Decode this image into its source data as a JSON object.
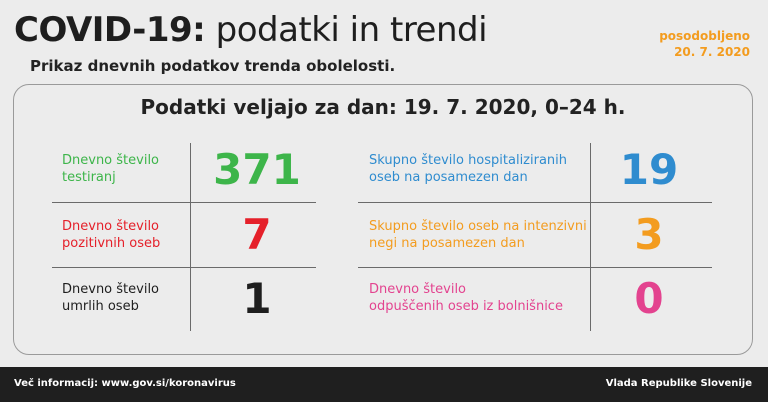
{
  "header": {
    "title_bold": "COVID-19:",
    "title_light": "podatki in trendi",
    "subtitle": "Prikaz dnevnih podatkov trenda obolelosti.",
    "updated_label": "posodobljeno",
    "updated_date": "20. 7. 2020"
  },
  "panel": {
    "title": "Podatki veljajo za dan: 19. 7. 2020, 0–24 h."
  },
  "stats_left": [
    {
      "line1": "Dnevno število",
      "line2": "testiranj",
      "value": "371",
      "color": "#3db54a"
    },
    {
      "line1": "Dnevno število",
      "line2": "pozitivnih oseb",
      "value": "7",
      "color": "#e5202a"
    },
    {
      "line1": "Dnevno število",
      "line2": "umrlih oseb",
      "value": "1",
      "color": "#1e1e1e"
    }
  ],
  "stats_right": [
    {
      "line1": "Skupno število hospitaliziranih",
      "line2": "oseb na posamezen dan",
      "value": "19",
      "color": "#2f8ccf"
    },
    {
      "line1": "Skupno število oseb na intenzivni",
      "line2": "negi na posamezen dan",
      "value": "3",
      "color": "#f39c1f"
    },
    {
      "line1": "Dnevno število",
      "line2": "odpuščenih oseb iz bolnišnice",
      "value": "0",
      "color": "#e3438f"
    }
  ],
  "footer": {
    "info": "Več informacij: www.gov.si/koronavirus",
    "org": "Vlada Republike Slovenije"
  }
}
